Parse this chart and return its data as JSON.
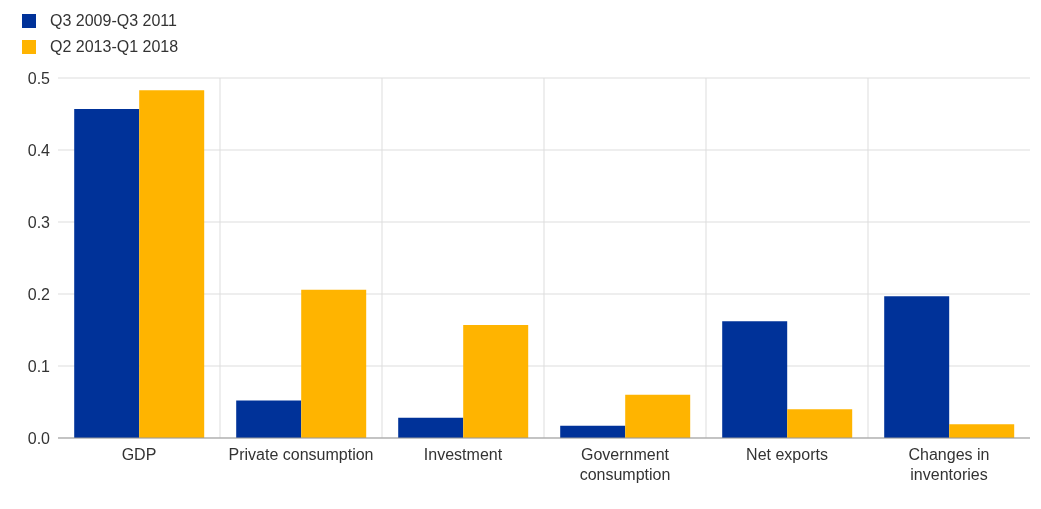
{
  "chart_data": {
    "type": "bar",
    "categories": [
      "GDP",
      "Private consumption",
      "Investment",
      "Government consumption",
      "Net exports",
      "Changes in inventories"
    ],
    "series": [
      {
        "name": "Q3 2009-Q3 2011",
        "color": "#003299",
        "values": [
          0.457,
          0.052,
          0.028,
          0.017,
          0.162,
          0.197
        ]
      },
      {
        "name": "Q2 2013-Q1 2018",
        "color": "#ffb400",
        "values": [
          0.483,
          0.206,
          0.157,
          0.06,
          0.04,
          0.019
        ]
      }
    ],
    "ylim": [
      0,
      0.5
    ],
    "yticks": [
      {
        "value": 0,
        "label": "0.0"
      },
      0.1,
      0.2,
      0.3,
      0.4,
      0.5
    ],
    "grid": true,
    "legend": "top left"
  }
}
